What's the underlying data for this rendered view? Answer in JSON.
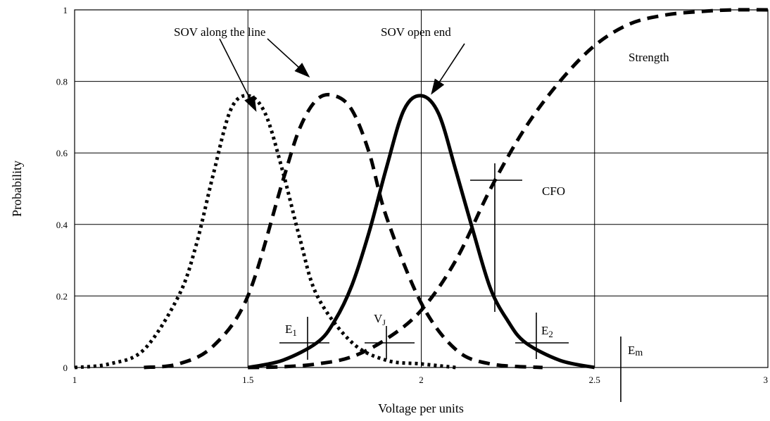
{
  "chart_data": {
    "type": "line",
    "xlabel": "Voltage per units",
    "ylabel": "Probability",
    "xlim": [
      1,
      3
    ],
    "ylim": [
      0,
      1
    ],
    "x_ticks": [
      "1",
      "1.5",
      "2",
      "2.5",
      "3"
    ],
    "y_ticks": [
      "0",
      "0.2",
      "0.4",
      "0.6",
      "0.8",
      "1"
    ],
    "grid": true,
    "series": [
      {
        "style": "dotted",
        "x": [
          1.0,
          1.1,
          1.2,
          1.3,
          1.35,
          1.4,
          1.45,
          1.5,
          1.55,
          1.6,
          1.65,
          1.7,
          1.8,
          1.9,
          2.0,
          2.1
        ],
        "y": [
          0.0,
          0.01,
          0.05,
          0.2,
          0.34,
          0.54,
          0.72,
          0.76,
          0.71,
          0.55,
          0.36,
          0.2,
          0.07,
          0.02,
          0.01,
          0.0
        ]
      },
      {
        "style": "dashed",
        "x": [
          1.2,
          1.3,
          1.4,
          1.5,
          1.6,
          1.65,
          1.7,
          1.75,
          1.8,
          1.85,
          1.9,
          2.0,
          2.1,
          2.2,
          2.35
        ],
        "y": [
          0.0,
          0.01,
          0.06,
          0.2,
          0.52,
          0.67,
          0.75,
          0.76,
          0.72,
          0.6,
          0.42,
          0.18,
          0.05,
          0.01,
          0.0
        ]
      },
      {
        "style": "solid",
        "x": [
          1.5,
          1.6,
          1.7,
          1.75,
          1.8,
          1.85,
          1.9,
          1.95,
          2.0,
          2.05,
          2.1,
          2.15,
          2.2,
          2.25,
          2.3,
          2.4,
          2.5
        ],
        "y": [
          0.0,
          0.02,
          0.07,
          0.13,
          0.23,
          0.38,
          0.56,
          0.72,
          0.76,
          0.71,
          0.55,
          0.38,
          0.22,
          0.13,
          0.07,
          0.02,
          0.0
        ]
      },
      {
        "style": "dashed",
        "x": [
          1.5,
          1.6,
          1.7,
          1.8,
          1.9,
          2.0,
          2.1,
          2.2,
          2.3,
          2.4,
          2.5,
          2.6,
          2.7,
          2.8,
          2.9,
          3.0
        ],
        "y": [
          0.0,
          0.002,
          0.01,
          0.03,
          0.08,
          0.16,
          0.3,
          0.5,
          0.67,
          0.8,
          0.9,
          0.96,
          0.985,
          0.995,
          1.0,
          1.0
        ]
      }
    ],
    "annotations": [
      {
        "text": "SOV along the line"
      },
      {
        "text": "SOV open end"
      },
      {
        "text": "Strength"
      },
      {
        "text": "CFO"
      },
      {
        "text": "E",
        "sub": "1"
      },
      {
        "text": "V",
        "sub": "J"
      },
      {
        "text": "E",
        "sub": "2"
      },
      {
        "text": "E",
        "sub": "m"
      }
    ]
  }
}
